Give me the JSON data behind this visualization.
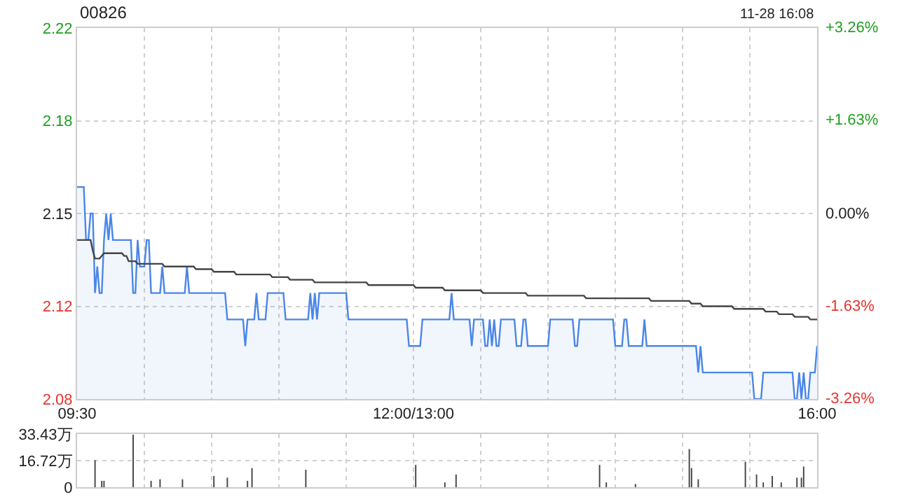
{
  "chart_data": [
    {
      "type": "line",
      "title": "00826",
      "annotations": [
        "11-28 16:08"
      ],
      "categories": [
        "09:30",
        null,
        null,
        null,
        null,
        null,
        null,
        null,
        null,
        null,
        null,
        null,
        null,
        null,
        null,
        null,
        null,
        null,
        null,
        null,
        null,
        null,
        null,
        null,
        null,
        null,
        null,
        null,
        null,
        null,
        null,
        null,
        null,
        null,
        null,
        null,
        null,
        null,
        null,
        null,
        null,
        null,
        null,
        null,
        null,
        null,
        null,
        null,
        null,
        null,
        null,
        null,
        null,
        null,
        null,
        null,
        null,
        null,
        null,
        null,
        null,
        null,
        null,
        null,
        null,
        null,
        null,
        null,
        null,
        null,
        null,
        null,
        null,
        null,
        null,
        null,
        null,
        null,
        null,
        null,
        null,
        null,
        null,
        null,
        null,
        null,
        null,
        null,
        null,
        null,
        null,
        null,
        null,
        null,
        null,
        null,
        null,
        null,
        null,
        null,
        null,
        null,
        null,
        null,
        null,
        null,
        null,
        null,
        null,
        null,
        null,
        null,
        null,
        null,
        null,
        null,
        null,
        null,
        null,
        null,
        null,
        null,
        null,
        null,
        null,
        null,
        null,
        null,
        null,
        null,
        null,
        null,
        null,
        null,
        null,
        null,
        null,
        null,
        null,
        null,
        null,
        null,
        null,
        null,
        null,
        null,
        null,
        null,
        null,
        null,
        "12:00/13:00",
        null,
        null,
        null,
        null,
        null,
        null,
        null,
        null,
        null,
        null,
        null,
        null,
        null,
        null,
        null,
        null,
        null,
        null,
        null,
        null,
        null,
        null,
        null,
        null,
        null,
        null,
        null,
        null,
        null,
        null,
        null,
        null,
        null,
        null,
        null,
        null,
        null,
        null,
        null,
        null,
        null,
        null,
        null,
        null,
        null,
        null,
        null,
        null,
        null,
        null,
        null,
        null,
        null,
        null,
        null,
        null,
        null,
        null,
        null,
        null,
        null,
        null,
        null,
        null,
        null,
        null,
        null,
        null,
        null,
        null,
        null,
        null,
        null,
        null,
        null,
        null,
        null,
        null,
        null,
        null,
        null,
        null,
        null,
        null,
        null,
        null,
        null,
        null,
        null,
        null,
        null,
        null,
        null,
        null,
        null,
        null,
        null,
        null,
        null,
        null,
        null,
        null,
        null,
        null,
        null,
        null,
        null,
        null,
        null,
        null,
        null,
        null,
        null,
        null,
        null,
        null,
        null,
        null,
        null,
        null,
        null,
        null,
        null,
        null,
        null,
        null,
        null,
        null,
        null,
        null,
        null,
        null,
        null,
        null,
        null,
        null,
        null,
        null,
        null,
        null,
        null,
        null,
        null,
        null,
        null,
        null,
        null,
        null,
        null,
        null,
        null,
        null,
        null,
        null,
        null,
        null,
        null,
        null,
        null,
        null,
        null,
        null,
        null,
        null,
        null,
        null,
        null,
        null,
        null,
        null,
        null,
        null,
        null,
        null,
        null,
        null,
        null,
        null,
        null,
        "16:00"
      ],
      "ylim": [
        2.08,
        2.22
      ],
      "yticks": [
        {
          "value": 2.22,
          "label": "2.22"
        },
        {
          "value": 2.185,
          "label": "2.18"
        },
        {
          "value": 2.15,
          "label": "2.15"
        },
        {
          "value": 2.115,
          "label": "2.12"
        },
        {
          "value": 2.08,
          "label": "2.08"
        }
      ],
      "y2lim": [
        -3.26,
        3.26
      ],
      "y2ticks": [
        {
          "value": 3.26,
          "label": "+3.26%"
        },
        {
          "value": 1.63,
          "label": "+1.63%"
        },
        {
          "value": 0,
          "label": "0.00%"
        },
        {
          "value": -1.63,
          "label": "-1.63%"
        },
        {
          "value": -3.26,
          "label": "-3.26%"
        }
      ],
      "grid": true,
      "marker": "none",
      "line_style": "solid",
      "series": [
        {
          "type": "area",
          "color": "#4a86e8",
          "values": [
            2.16,
            2.16,
            2.16,
            2.16,
            2.14,
            2.14,
            2.15,
            2.15,
            2.12,
            2.13,
            2.12,
            2.12,
            2.14,
            2.15,
            2.14,
            2.15,
            2.14,
            2.14,
            2.14,
            2.14,
            2.14,
            2.14,
            2.14,
            2.14,
            2.14,
            2.12,
            2.12,
            2.14,
            2.13,
            2.13,
            2.13,
            2.14,
            2.14,
            2.12,
            2.12,
            2.12,
            2.12,
            2.12,
            2.13,
            2.12,
            2.12,
            2.12,
            2.12,
            2.12,
            2.12,
            2.12,
            2.12,
            2.12,
            2.12,
            2.13,
            2.12,
            2.12,
            2.12,
            2.12,
            2.12,
            2.12,
            2.12,
            2.12,
            2.12,
            2.12,
            2.12,
            2.12,
            2.12,
            2.12,
            2.12,
            2.12,
            2.12,
            2.11,
            2.11,
            2.11,
            2.11,
            2.11,
            2.11,
            2.11,
            2.11,
            2.1,
            2.11,
            2.11,
            2.11,
            2.11,
            2.12,
            2.11,
            2.11,
            2.11,
            2.11,
            2.12,
            2.12,
            2.12,
            2.12,
            2.12,
            2.12,
            2.12,
            2.12,
            2.11,
            2.11,
            2.11,
            2.11,
            2.11,
            2.11,
            2.11,
            2.11,
            2.11,
            2.11,
            2.11,
            2.12,
            2.11,
            2.12,
            2.11,
            2.12,
            2.12,
            2.12,
            2.12,
            2.12,
            2.12,
            2.12,
            2.12,
            2.12,
            2.12,
            2.12,
            2.12,
            2.12,
            2.11,
            2.11,
            2.11,
            2.11,
            2.11,
            2.11,
            2.11,
            2.11,
            2.11,
            2.11,
            2.11,
            2.11,
            2.11,
            2.11,
            2.11,
            2.11,
            2.11,
            2.11,
            2.11,
            2.11,
            2.11,
            2.11,
            2.11,
            2.11,
            2.11,
            2.11,
            2.11,
            2.1,
            2.1,
            2.1,
            2.1,
            2.1,
            2.1,
            2.11,
            2.11,
            2.11,
            2.11,
            2.11,
            2.11,
            2.11,
            2.11,
            2.11,
            2.11,
            2.11,
            2.11,
            2.11,
            2.12,
            2.11,
            2.11,
            2.11,
            2.11,
            2.11,
            2.11,
            2.11,
            2.11,
            2.1,
            2.11,
            2.11,
            2.11,
            2.11,
            2.11,
            2.1,
            2.1,
            2.11,
            2.1,
            2.11,
            2.1,
            2.1,
            2.11,
            2.11,
            2.11,
            2.11,
            2.11,
            2.11,
            2.11,
            2.1,
            2.1,
            2.1,
            2.11,
            2.11,
            2.1,
            2.1,
            2.1,
            2.1,
            2.1,
            2.1,
            2.1,
            2.1,
            2.1,
            2.1,
            2.11,
            2.11,
            2.11,
            2.11,
            2.11,
            2.11,
            2.11,
            2.11,
            2.11,
            2.11,
            2.11,
            2.1,
            2.1,
            2.11,
            2.11,
            2.11,
            2.11,
            2.11,
            2.11,
            2.11,
            2.11,
            2.11,
            2.11,
            2.11,
            2.11,
            2.11,
            2.11,
            2.11,
            2.11,
            2.1,
            2.1,
            2.1,
            2.1,
            2.11,
            2.11,
            2.1,
            2.1,
            2.1,
            2.1,
            2.1,
            2.1,
            2.1,
            2.11,
            2.1,
            2.1,
            2.1,
            2.1,
            2.1,
            2.1,
            2.1,
            2.1,
            2.1,
            2.1,
            2.1,
            2.1,
            2.1,
            2.1,
            2.1,
            2.1,
            2.1,
            2.1,
            2.1,
            2.1,
            2.1,
            2.1,
            2.1,
            2.09,
            2.1,
            2.09,
            2.09,
            2.09,
            2.09,
            2.09,
            2.09,
            2.09,
            2.09,
            2.09,
            2.09,
            2.09,
            2.09,
            2.09,
            2.09,
            2.09,
            2.09,
            2.09,
            2.09,
            2.09,
            2.09,
            2.09,
            2.09,
            2.09,
            2.08,
            2.08,
            2.08,
            2.08,
            2.09,
            2.09,
            2.09,
            2.09,
            2.09,
            2.09,
            2.09,
            2.09,
            2.09,
            2.09,
            2.09,
            2.09,
            2.09,
            2.09,
            2.08,
            2.08,
            2.09,
            2.08,
            2.09,
            2.08,
            2.08,
            2.09,
            2.09,
            2.09,
            2.1
          ]
        },
        {
          "type": "line",
          "color": "#444444",
          "values": [
            2.14,
            2.14,
            2.14,
            2.14,
            2.14,
            2.14,
            2.14,
            2.136,
            2.133,
            2.133,
            2.133,
            2.134,
            2.135,
            2.135,
            2.135,
            2.135,
            2.135,
            2.135,
            2.135,
            2.135,
            2.135,
            2.134,
            2.134,
            2.132,
            2.132,
            2.132,
            2.132,
            2.131,
            2.131,
            2.131,
            2.131,
            2.131,
            2.131,
            2.131,
            2.131,
            2.131,
            2.131,
            2.131,
            2.131,
            2.13,
            2.13,
            2.13,
            2.13,
            2.13,
            2.13,
            2.13,
            2.13,
            2.13,
            2.13,
            2.13,
            2.13,
            2.13,
            2.13,
            2.129,
            2.129,
            2.129,
            2.129,
            2.129,
            2.129,
            2.129,
            2.129,
            2.128,
            2.128,
            2.128,
            2.128,
            2.128,
            2.128,
            2.128,
            2.128,
            2.128,
            2.128,
            2.127,
            2.127,
            2.127,
            2.127,
            2.127,
            2.127,
            2.127,
            2.127,
            2.127,
            2.127,
            2.127,
            2.127,
            2.127,
            2.127,
            2.127,
            2.127,
            2.126,
            2.126,
            2.126,
            2.126,
            2.126,
            2.126,
            2.126,
            2.126,
            2.125,
            2.125,
            2.125,
            2.125,
            2.125,
            2.125,
            2.125,
            2.125,
            2.125,
            2.125,
            2.125,
            2.124,
            2.124,
            2.124,
            2.124,
            2.124,
            2.124,
            2.124,
            2.124,
            2.124,
            2.124,
            2.124,
            2.124,
            2.124,
            2.124,
            2.124,
            2.124,
            2.124,
            2.124,
            2.124,
            2.124,
            2.124,
            2.124,
            2.124,
            2.124,
            2.123,
            2.123,
            2.123,
            2.123,
            2.123,
            2.123,
            2.123,
            2.123,
            2.123,
            2.123,
            2.123,
            2.123,
            2.123,
            2.123,
            2.123,
            2.123,
            2.123,
            2.123,
            2.123,
            2.123,
            2.123,
            2.122,
            2.122,
            2.122,
            2.122,
            2.122,
            2.122,
            2.122,
            2.122,
            2.122,
            2.122,
            2.122,
            2.122,
            2.122,
            2.121,
            2.121,
            2.121,
            2.121,
            2.121,
            2.121,
            2.121,
            2.121,
            2.121,
            2.121,
            2.121,
            2.121,
            2.121,
            2.121,
            2.121,
            2.121,
            2.121,
            2.12,
            2.12,
            2.12,
            2.12,
            2.12,
            2.12,
            2.12,
            2.12,
            2.12,
            2.12,
            2.12,
            2.12,
            2.12,
            2.12,
            2.12,
            2.12,
            2.12,
            2.12,
            2.12,
            2.12,
            2.119,
            2.119,
            2.119,
            2.119,
            2.119,
            2.119,
            2.119,
            2.119,
            2.119,
            2.119,
            2.119,
            2.119,
            2.119,
            2.119,
            2.119,
            2.119,
            2.119,
            2.119,
            2.119,
            2.119,
            2.119,
            2.119,
            2.119,
            2.119,
            2.119,
            2.119,
            2.118,
            2.118,
            2.118,
            2.118,
            2.118,
            2.118,
            2.118,
            2.118,
            2.118,
            2.118,
            2.118,
            2.118,
            2.118,
            2.118,
            2.118,
            2.118,
            2.118,
            2.118,
            2.118,
            2.118,
            2.118,
            2.118,
            2.118,
            2.118,
            2.118,
            2.118,
            2.118,
            2.118,
            2.118,
            2.117,
            2.117,
            2.117,
            2.117,
            2.117,
            2.117,
            2.117,
            2.117,
            2.117,
            2.117,
            2.117,
            2.117,
            2.117,
            2.117,
            2.117,
            2.117,
            2.117,
            2.117,
            2.116,
            2.116,
            2.116,
            2.116,
            2.116,
            2.115,
            2.115,
            2.115,
            2.115,
            2.115,
            2.115,
            2.115,
            2.115,
            2.115,
            2.115,
            2.115,
            2.115,
            2.115,
            2.115,
            2.114,
            2.114,
            2.114,
            2.114,
            2.114,
            2.114,
            2.114,
            2.114,
            2.114,
            2.114,
            2.114,
            2.114,
            2.114,
            2.114,
            2.113,
            2.113,
            2.113,
            2.113,
            2.113,
            2.113,
            2.112,
            2.112,
            2.112,
            2.112,
            2.112,
            2.112,
            2.112,
            2.111,
            2.111,
            2.111,
            2.111,
            2.111,
            2.111,
            2.111,
            2.11,
            2.11,
            2.11,
            2.11
          ]
        }
      ]
    },
    {
      "type": "bar",
      "tick_labels": "y",
      "categories": [
        null,
        null,
        null,
        null,
        null,
        null,
        null,
        null,
        null,
        null,
        null,
        null,
        null,
        null,
        null,
        null,
        null,
        null,
        null,
        null,
        null,
        null,
        null,
        null,
        null,
        null,
        null,
        null,
        null,
        null,
        null,
        null,
        null,
        null,
        null,
        null,
        null,
        null,
        null,
        null,
        null,
        null,
        null,
        null,
        null,
        null,
        null,
        null,
        null,
        null,
        null,
        null,
        null,
        null,
        null,
        null,
        null,
        null,
        null,
        null,
        null,
        null,
        null,
        null,
        null,
        null,
        null,
        null,
        null,
        null,
        null,
        null,
        null,
        null,
        null,
        null,
        null,
        null,
        null,
        null,
        null,
        null,
        null,
        null,
        null,
        null,
        null,
        null,
        null,
        null,
        null,
        null,
        null,
        null,
        null,
        null,
        null,
        null,
        null,
        null,
        null,
        null,
        null,
        null,
        null,
        null,
        null,
        null,
        null,
        null,
        null,
        null,
        null,
        null,
        null,
        null,
        null,
        null,
        null,
        null,
        null,
        null,
        null,
        null,
        null,
        null,
        null,
        null,
        null,
        null,
        null,
        null,
        null,
        null,
        null,
        null,
        null,
        null,
        null,
        null,
        null,
        null,
        null,
        null,
        null,
        null,
        null,
        null,
        null,
        null,
        null,
        null,
        null,
        null,
        null,
        null,
        null,
        null,
        null,
        null,
        null,
        null,
        null,
        null,
        null,
        null,
        null,
        null,
        null,
        null,
        null,
        null,
        null,
        null,
        null,
        null,
        null,
        null,
        null,
        null,
        null,
        null,
        null,
        null,
        null,
        null,
        null,
        null,
        null,
        null,
        null,
        null,
        null,
        null,
        null,
        null,
        null,
        null,
        null,
        null,
        null,
        null,
        null,
        null,
        null,
        null,
        null,
        null,
        null,
        null,
        null,
        null,
        null,
        null,
        null,
        null,
        null,
        null,
        null,
        null,
        null,
        null,
        null,
        null,
        null,
        null,
        null,
        null,
        null,
        null,
        null,
        null,
        null,
        null,
        null,
        null,
        null,
        null,
        null,
        null,
        null,
        null,
        null,
        null,
        null,
        null,
        null,
        null,
        null,
        null,
        null,
        null,
        null,
        null,
        null,
        null,
        null,
        null,
        null,
        null,
        null,
        null,
        null,
        null,
        null,
        null,
        null,
        null,
        null,
        null,
        null,
        null,
        null,
        null,
        null,
        null,
        null,
        null,
        null,
        null,
        null,
        null,
        null,
        null,
        null,
        null,
        null,
        null,
        null,
        null,
        null,
        null,
        null,
        null,
        null,
        null,
        null,
        null,
        null,
        null,
        null,
        null,
        null,
        null,
        null,
        null,
        null,
        null,
        null,
        null,
        null,
        null,
        null,
        null,
        null,
        null,
        null,
        null,
        null,
        null,
        null,
        null,
        null,
        null,
        null,
        null,
        null,
        null,
        null,
        null,
        null
      ],
      "ylim": [
        0,
        33.43
      ],
      "yticks": [
        {
          "value": 0,
          "label": "0"
        },
        {
          "value": 16.72,
          "label": "16.72万"
        },
        {
          "value": 33.43,
          "label": "33.43万"
        }
      ],
      "grid": true,
      "color": "#444444",
      "values": [
        null,
        null,
        null,
        null,
        null,
        null,
        null,
        null,
        17,
        null,
        null,
        4,
        4,
        null,
        null,
        null,
        null,
        null,
        null,
        null,
        null,
        null,
        null,
        null,
        null,
        33,
        null,
        null,
        null,
        null,
        null,
        null,
        null,
        4,
        null,
        null,
        null,
        5,
        null,
        null,
        null,
        null,
        null,
        null,
        null,
        null,
        null,
        5,
        null,
        null,
        null,
        null,
        null,
        null,
        null,
        null,
        null,
        null,
        null,
        null,
        null,
        7,
        null,
        null,
        null,
        null,
        null,
        6,
        null,
        null,
        null,
        null,
        null,
        null,
        null,
        null,
        4,
        null,
        12,
        null,
        null,
        null,
        null,
        null,
        null,
        null,
        null,
        null,
        null,
        null,
        null,
        null,
        null,
        null,
        null,
        null,
        null,
        null,
        null,
        null,
        null,
        null,
        11,
        null,
        null,
        null,
        null,
        null,
        null,
        null,
        null,
        null,
        null,
        null,
        null,
        null,
        null,
        null,
        null,
        null,
        null,
        null,
        null,
        null,
        null,
        null,
        null,
        null,
        null,
        null,
        null,
        null,
        null,
        null,
        null,
        null,
        null,
        null,
        null,
        null,
        null,
        null,
        null,
        null,
        null,
        null,
        null,
        null,
        null,
        null,
        null,
        14,
        null,
        null,
        null,
        null,
        null,
        null,
        null,
        null,
        null,
        null,
        null,
        null,
        3,
        null,
        null,
        null,
        null,
        8,
        null,
        null,
        null,
        null,
        null,
        null,
        null,
        null,
        null,
        null,
        null,
        null,
        null,
        null,
        null,
        null,
        null,
        null,
        null,
        null,
        null,
        null,
        null,
        null,
        null,
        null,
        null,
        null,
        null,
        null,
        null,
        null,
        null,
        null,
        null,
        null,
        null,
        null,
        null,
        null,
        null,
        null,
        null,
        null,
        null,
        null,
        null,
        null,
        null,
        null,
        null,
        null,
        null,
        null,
        null,
        null,
        null,
        null,
        null,
        null,
        null,
        null,
        null,
        14,
        null,
        null,
        3,
        null,
        null,
        null,
        null,
        null,
        null,
        null,
        null,
        null,
        null,
        null,
        null,
        2,
        null,
        null,
        null,
        null,
        null,
        null,
        null,
        null,
        null,
        null,
        null,
        null,
        null,
        null,
        null,
        null,
        null,
        null,
        null,
        null,
        null,
        null,
        null,
        24,
        12,
        null,
        null,
        5,
        null,
        null,
        null,
        null,
        null,
        null,
        null,
        null,
        null,
        null,
        null,
        null,
        null,
        null,
        null,
        null,
        null,
        null,
        null,
        null,
        16,
        null,
        null,
        null,
        null,
        8,
        null,
        null,
        3,
        null,
        null,
        null,
        7,
        null,
        null,
        null,
        3,
        null,
        null,
        null,
        null,
        null,
        null,
        6,
        null,
        6,
        13,
        null,
        null,
        null,
        null,
        null,
        null
      ]
    }
  ]
}
